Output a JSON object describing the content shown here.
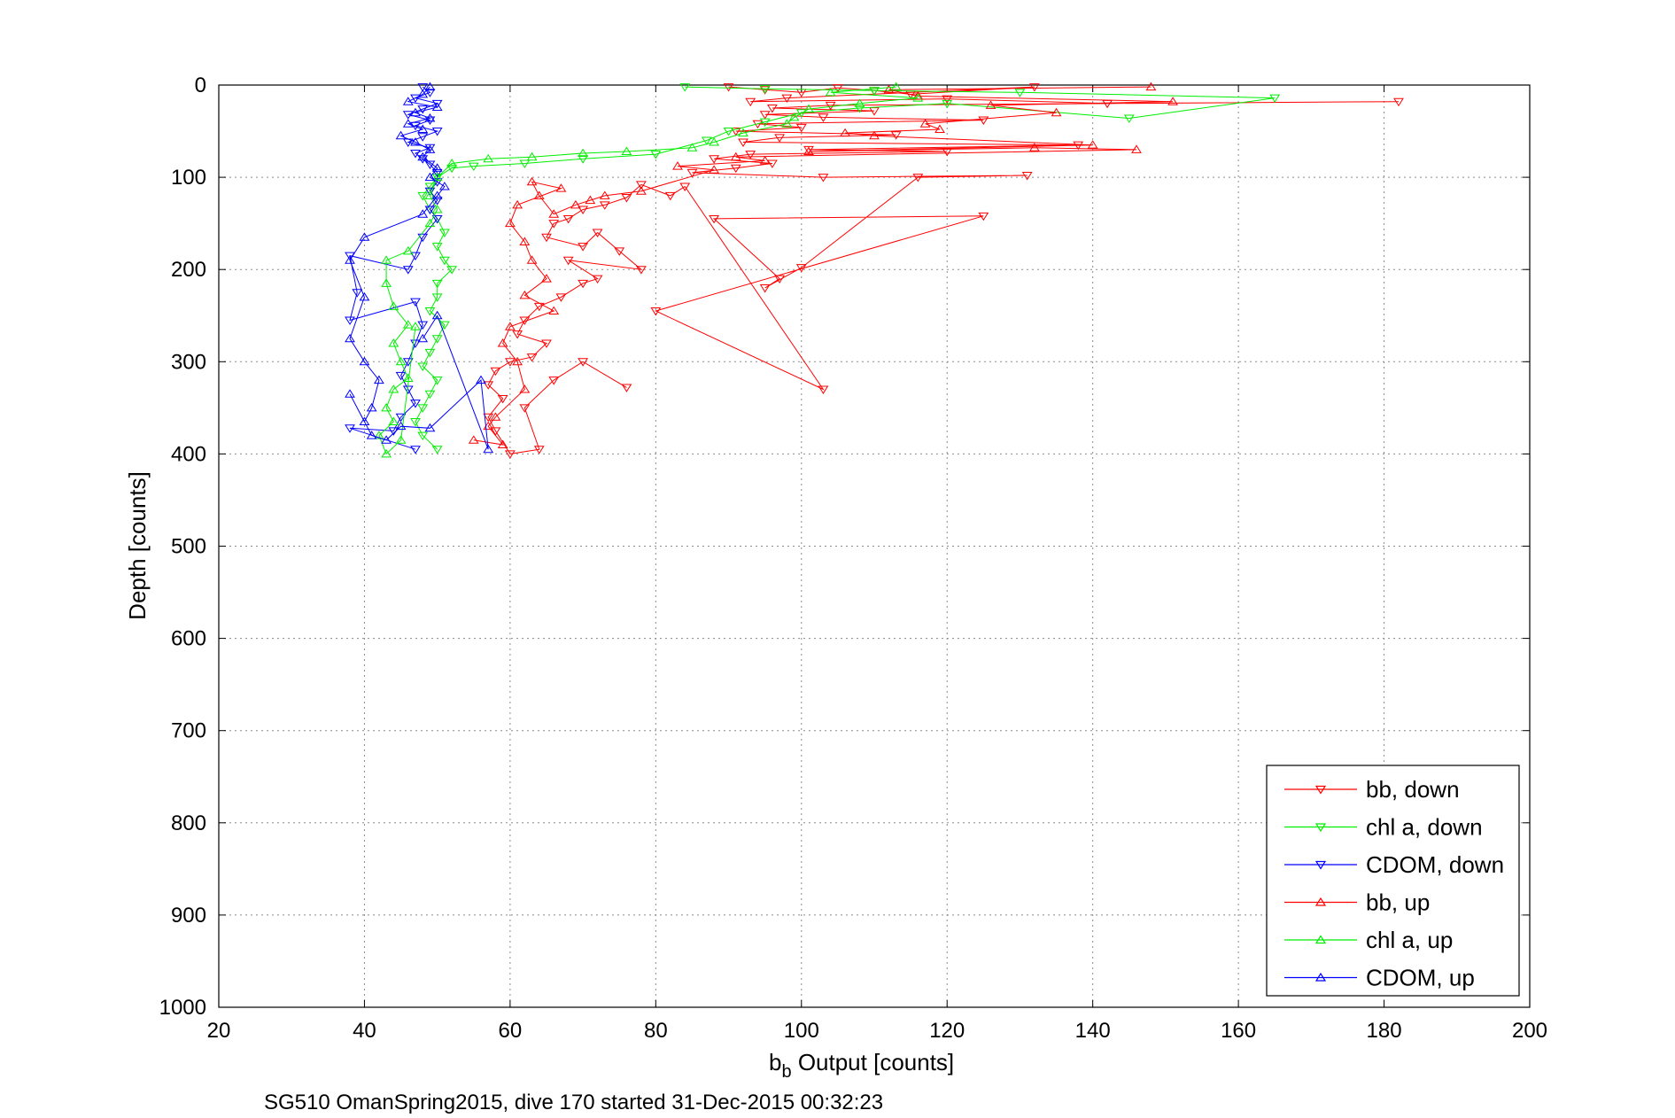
{
  "chart_data": {
    "type": "scatter",
    "title": "",
    "xlabel_main": "b",
    "xlabel_sub": "b",
    "xlabel_rest": " Output [counts]",
    "ylabel": "Depth [counts]",
    "caption": "SG510 OmanSpring2015, dive 170 started 31-Dec-2015 00:32:23",
    "xlim": [
      20,
      200
    ],
    "ylim": [
      0,
      1000
    ],
    "y_reversed": true,
    "grid": true,
    "legend_placement": "bottom-right",
    "x_ticks": [
      "20",
      "40",
      "60",
      "80",
      "100",
      "120",
      "140",
      "160",
      "180",
      "200"
    ],
    "y_ticks": [
      "0",
      "100",
      "200",
      "300",
      "400",
      "500",
      "600",
      "700",
      "800",
      "900",
      "1000"
    ],
    "series": [
      {
        "name": "bb, down",
        "color": "#ff0000",
        "marker": "triangle-down",
        "points": [
          [
            90,
            2
          ],
          [
            95,
            5
          ],
          [
            100,
            8
          ],
          [
            105,
            3
          ],
          [
            110,
            6
          ],
          [
            115,
            10
          ],
          [
            132,
            2
          ],
          [
            98,
            14
          ],
          [
            93,
            18
          ],
          [
            120,
            15
          ],
          [
            142,
            20
          ],
          [
            182,
            18
          ],
          [
            104,
            22
          ],
          [
            96,
            25
          ],
          [
            110,
            28
          ],
          [
            95,
            32
          ],
          [
            103,
            35
          ],
          [
            125,
            38
          ],
          [
            94,
            42
          ],
          [
            100,
            46
          ],
          [
            91,
            50
          ],
          [
            113,
            54
          ],
          [
            97,
            57
          ],
          [
            92,
            62
          ],
          [
            138,
            65
          ],
          [
            101,
            70
          ],
          [
            120,
            72
          ],
          [
            93,
            75
          ],
          [
            88,
            80
          ],
          [
            96,
            85
          ],
          [
            91,
            90
          ],
          [
            85,
            95
          ],
          [
            103,
            100
          ],
          [
            131,
            98
          ],
          [
            116,
            100
          ],
          [
            100,
            198
          ],
          [
            95,
            220
          ],
          [
            97,
            210
          ],
          [
            88,
            145
          ],
          [
            125,
            142
          ],
          [
            80,
            245
          ],
          [
            103,
            330
          ],
          [
            84,
            110
          ],
          [
            82,
            120
          ],
          [
            78,
            108
          ],
          [
            76,
            122
          ],
          [
            73,
            130
          ],
          [
            70,
            135
          ],
          [
            68,
            145
          ],
          [
            66,
            150
          ],
          [
            65,
            165
          ],
          [
            70,
            175
          ],
          [
            72,
            160
          ],
          [
            75,
            180
          ],
          [
            78,
            200
          ],
          [
            68,
            190
          ],
          [
            72,
            210
          ],
          [
            70,
            215
          ],
          [
            67,
            230
          ],
          [
            64,
            240
          ],
          [
            62,
            255
          ],
          [
            61,
            270
          ],
          [
            65,
            280
          ],
          [
            63,
            295
          ],
          [
            60,
            300
          ],
          [
            58,
            310
          ],
          [
            57,
            325
          ],
          [
            59,
            340
          ],
          [
            57,
            360
          ],
          [
            58,
            375
          ],
          [
            60,
            400
          ],
          [
            64,
            395
          ],
          [
            62,
            350
          ],
          [
            66,
            320
          ],
          [
            70,
            300
          ],
          [
            76,
            328
          ]
        ]
      },
      {
        "name": "chl a, down",
        "color": "#00ee00",
        "marker": "triangle-down",
        "points": [
          [
            84,
            2
          ],
          [
            95,
            4
          ],
          [
            110,
            6
          ],
          [
            130,
            8
          ],
          [
            165,
            14
          ],
          [
            145,
            36
          ],
          [
            120,
            20
          ],
          [
            108,
            25
          ],
          [
            100,
            30
          ],
          [
            95,
            40
          ],
          [
            90,
            50
          ],
          [
            87,
            60
          ],
          [
            80,
            75
          ],
          [
            70,
            80
          ],
          [
            62,
            85
          ],
          [
            55,
            88
          ],
          [
            52,
            90
          ],
          [
            50,
            100
          ],
          [
            49,
            110
          ],
          [
            48,
            120
          ],
          [
            49,
            135
          ],
          [
            50,
            145
          ],
          [
            51,
            160
          ],
          [
            50,
            175
          ],
          [
            51,
            190
          ],
          [
            52,
            200
          ],
          [
            50,
            215
          ],
          [
            50,
            230
          ],
          [
            49,
            245
          ],
          [
            51,
            260
          ],
          [
            50,
            275
          ],
          [
            49,
            290
          ],
          [
            48,
            305
          ],
          [
            50,
            320
          ],
          [
            49,
            335
          ],
          [
            48,
            350
          ],
          [
            47,
            365
          ],
          [
            48,
            380
          ],
          [
            50,
            395
          ]
        ]
      },
      {
        "name": "CDOM, down",
        "color": "#0000ff",
        "marker": "triangle-down",
        "points": [
          [
            48,
            2
          ],
          [
            49,
            8
          ],
          [
            47,
            14
          ],
          [
            50,
            20
          ],
          [
            48,
            26
          ],
          [
            46,
            32
          ],
          [
            49,
            38
          ],
          [
            47,
            44
          ],
          [
            50,
            50
          ],
          [
            48,
            56
          ],
          [
            46,
            62
          ],
          [
            49,
            68
          ],
          [
            47,
            74
          ],
          [
            48,
            80
          ],
          [
            49,
            86
          ],
          [
            50,
            95
          ],
          [
            50,
            105
          ],
          [
            49,
            115
          ],
          [
            50,
            125
          ],
          [
            49,
            135
          ],
          [
            50,
            145
          ],
          [
            48,
            165
          ],
          [
            47,
            185
          ],
          [
            46,
            200
          ],
          [
            38,
            185
          ],
          [
            39,
            225
          ],
          [
            38,
            255
          ],
          [
            47,
            235
          ],
          [
            48,
            260
          ],
          [
            47,
            280
          ],
          [
            46,
            300
          ],
          [
            45,
            315
          ],
          [
            46,
            330
          ],
          [
            47,
            345
          ],
          [
            45,
            360
          ],
          [
            44,
            375
          ],
          [
            38,
            372
          ],
          [
            47,
            395
          ]
        ]
      },
      {
        "name": "bb, up",
        "color": "#ff0000",
        "marker": "triangle-up",
        "points": [
          [
            148,
            2
          ],
          [
            112,
            5
          ],
          [
            116,
            12
          ],
          [
            151,
            18
          ],
          [
            126,
            22
          ],
          [
            135,
            30
          ],
          [
            117,
            42
          ],
          [
            119,
            48
          ],
          [
            106,
            52
          ],
          [
            110,
            55
          ],
          [
            140,
            65
          ],
          [
            101,
            72
          ],
          [
            132,
            68
          ],
          [
            146,
            70
          ],
          [
            91,
            78
          ],
          [
            95,
            82
          ],
          [
            83,
            88
          ],
          [
            88,
            92
          ],
          [
            78,
            115
          ],
          [
            73,
            120
          ],
          [
            71,
            125
          ],
          [
            69,
            130
          ],
          [
            66,
            140
          ],
          [
            64,
            120
          ],
          [
            63,
            105
          ],
          [
            67,
            112
          ],
          [
            61,
            130
          ],
          [
            60,
            150
          ],
          [
            62,
            170
          ],
          [
            63,
            190
          ],
          [
            65,
            210
          ],
          [
            62,
            228
          ],
          [
            66,
            245
          ],
          [
            60,
            262
          ],
          [
            59,
            280
          ],
          [
            61,
            300
          ],
          [
            62,
            330
          ],
          [
            58,
            360
          ],
          [
            57,
            370
          ],
          [
            59,
            390
          ],
          [
            55,
            385
          ]
        ]
      },
      {
        "name": "chl a, up",
        "color": "#00ee00",
        "marker": "triangle-up",
        "points": [
          [
            113,
            2
          ],
          [
            104,
            8
          ],
          [
            116,
            14
          ],
          [
            108,
            20
          ],
          [
            101,
            26
          ],
          [
            99,
            35
          ],
          [
            98,
            42
          ],
          [
            92,
            52
          ],
          [
            88,
            62
          ],
          [
            85,
            68
          ],
          [
            76,
            72
          ],
          [
            70,
            74
          ],
          [
            63,
            78
          ],
          [
            57,
            80
          ],
          [
            52,
            85
          ],
          [
            50,
            100
          ],
          [
            49,
            120
          ],
          [
            50,
            135
          ],
          [
            49,
            150
          ],
          [
            46,
            180
          ],
          [
            43,
            190
          ],
          [
            43,
            215
          ],
          [
            44,
            240
          ],
          [
            46,
            260
          ],
          [
            44,
            280
          ],
          [
            45,
            300
          ],
          [
            46,
            318
          ],
          [
            44,
            330
          ],
          [
            43,
            350
          ],
          [
            44,
            365
          ],
          [
            42,
            380
          ],
          [
            43,
            400
          ],
          [
            45,
            385
          ],
          [
            47,
            262
          ]
        ]
      },
      {
        "name": "CDOM, up",
        "color": "#0000ff",
        "marker": "triangle-up",
        "points": [
          [
            49,
            2
          ],
          [
            48,
            10
          ],
          [
            46,
            18
          ],
          [
            50,
            24
          ],
          [
            47,
            30
          ],
          [
            49,
            36
          ],
          [
            46,
            42
          ],
          [
            48,
            48
          ],
          [
            45,
            55
          ],
          [
            47,
            62
          ],
          [
            49,
            70
          ],
          [
            48,
            78
          ],
          [
            50,
            90
          ],
          [
            49,
            100
          ],
          [
            51,
            110
          ],
          [
            50,
            120
          ],
          [
            48,
            140
          ],
          [
            40,
            165
          ],
          [
            38,
            190
          ],
          [
            40,
            230
          ],
          [
            38,
            275
          ],
          [
            40,
            300
          ],
          [
            42,
            320
          ],
          [
            41,
            350
          ],
          [
            40,
            365
          ],
          [
            38,
            335
          ],
          [
            41,
            380
          ],
          [
            43,
            385
          ],
          [
            45,
            370
          ],
          [
            49,
            372
          ],
          [
            56,
            320
          ],
          [
            57,
            395
          ],
          [
            50,
            250
          ],
          [
            48,
            275
          ]
        ]
      }
    ]
  }
}
